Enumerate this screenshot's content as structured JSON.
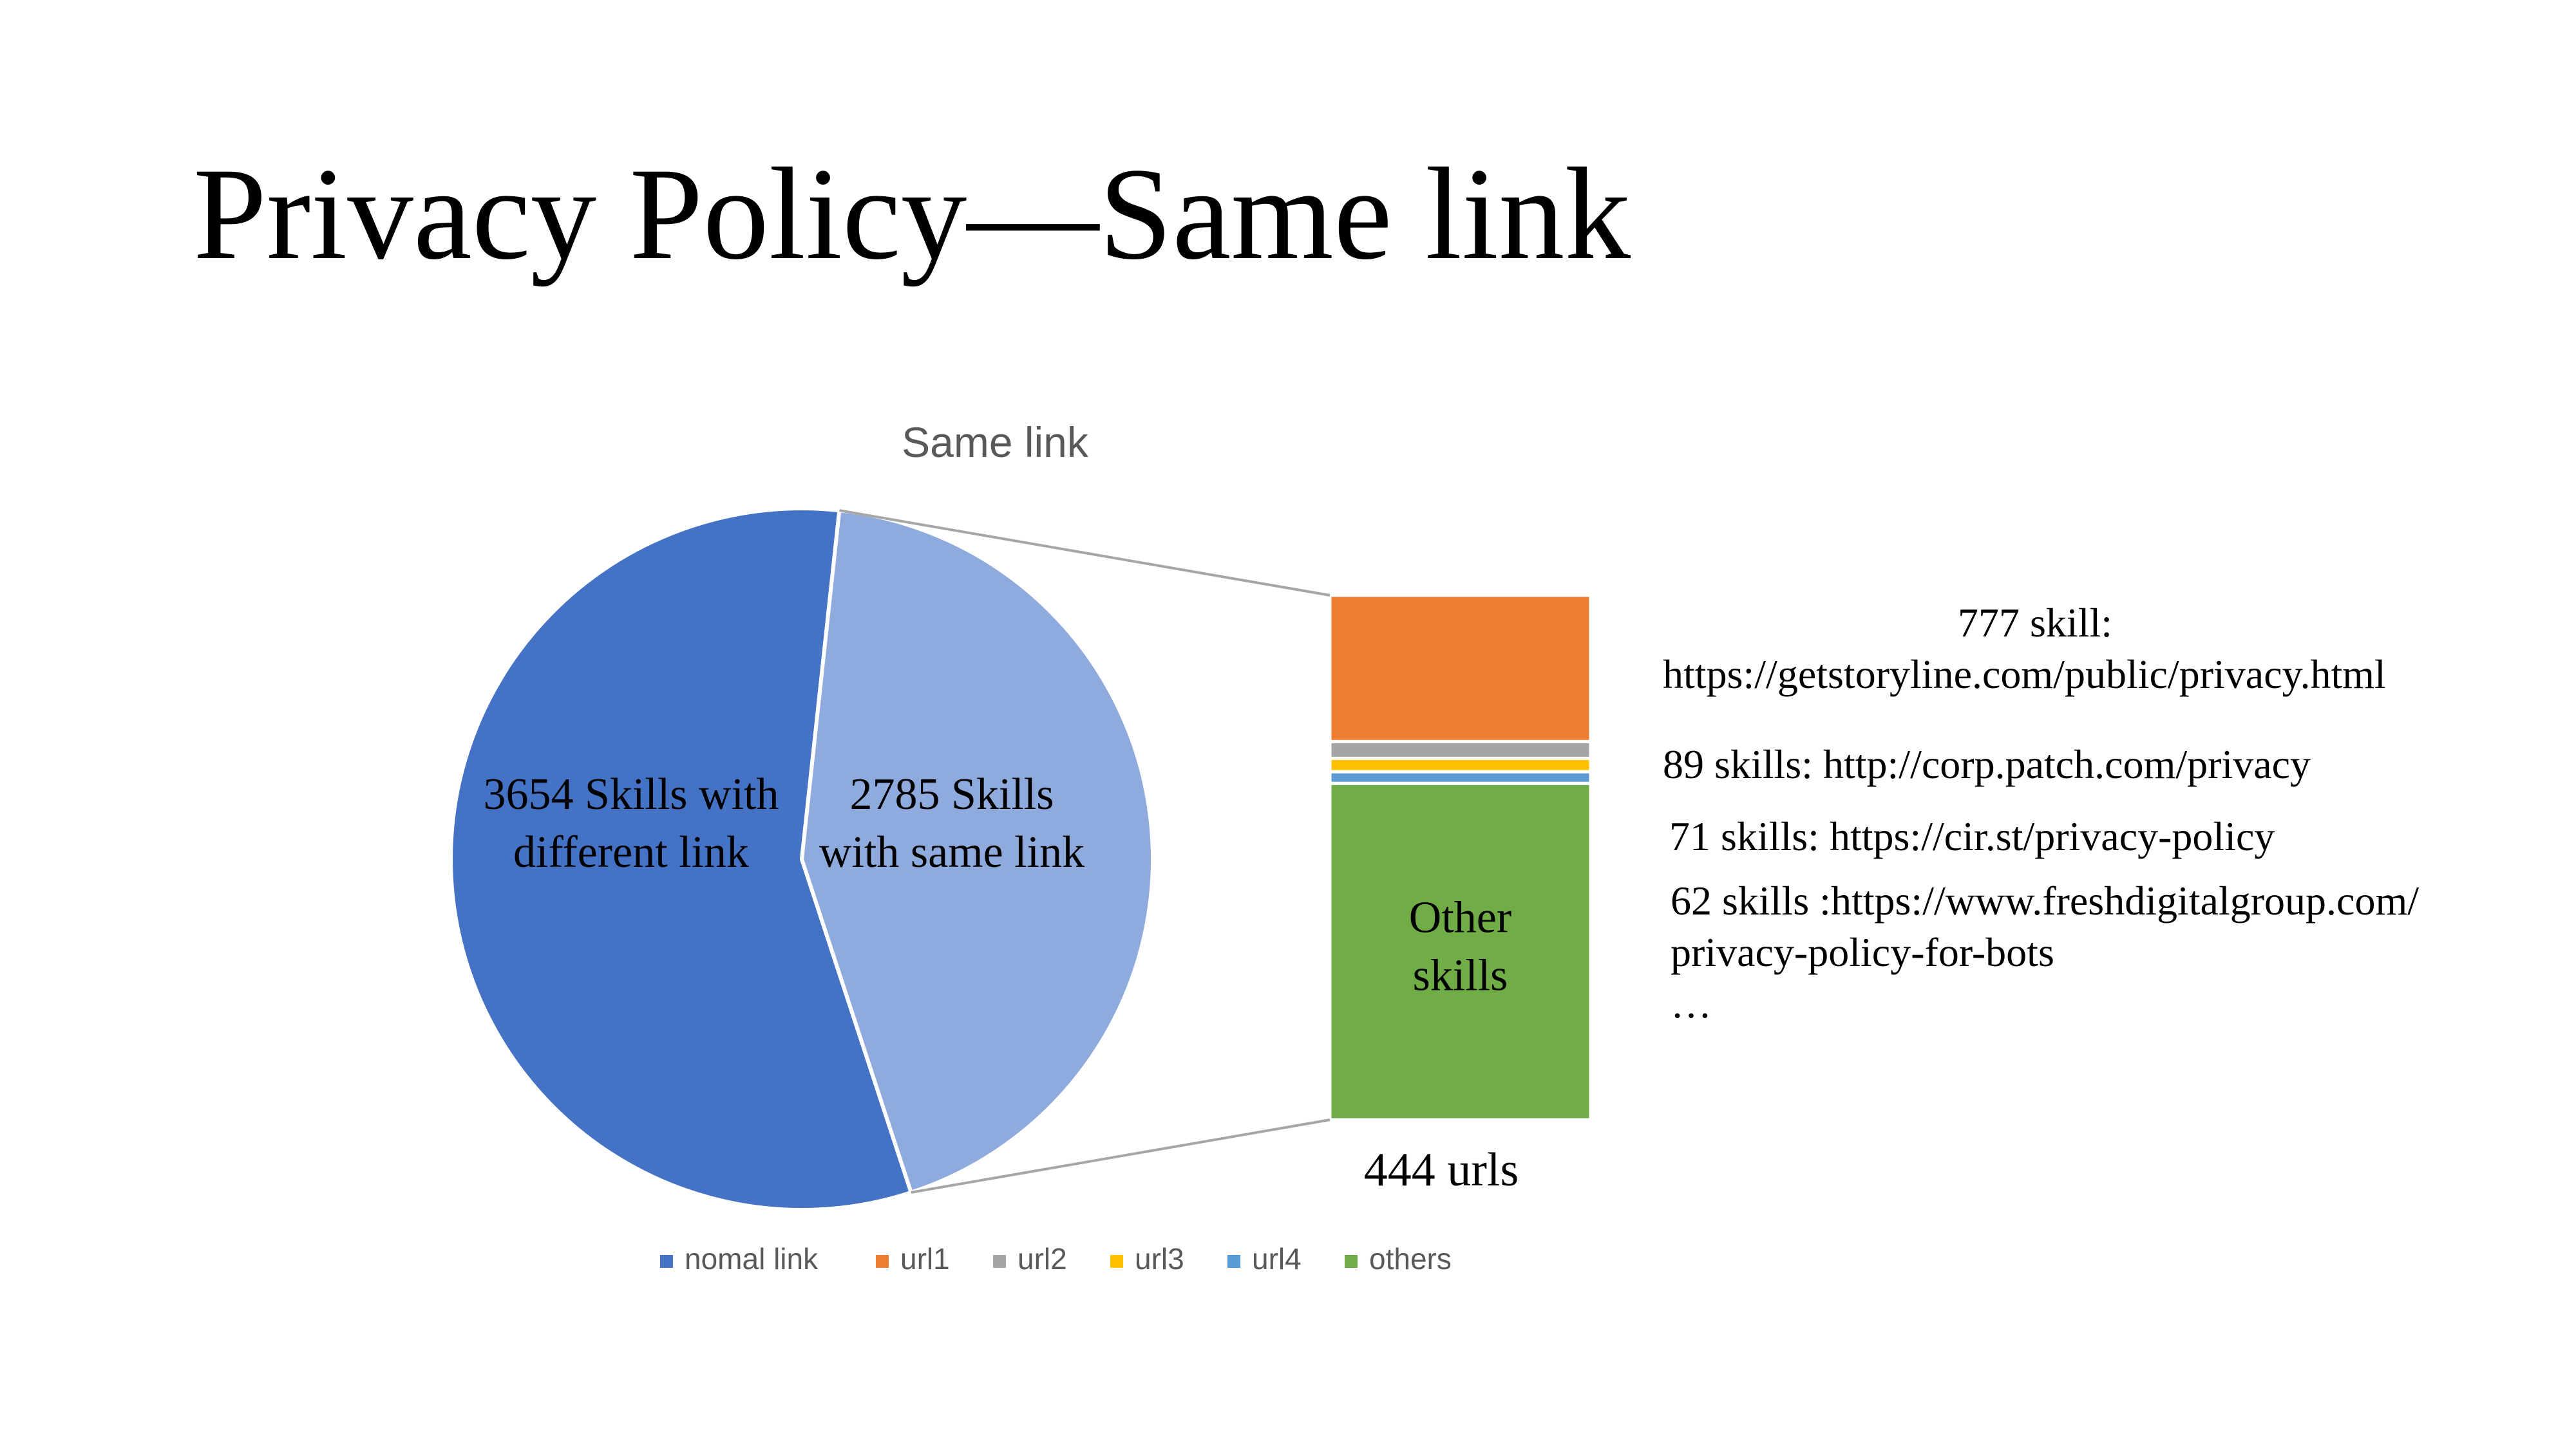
{
  "slide": {
    "title": "Privacy Policy—Same link"
  },
  "chart_data": {
    "type": "bar-of-pie",
    "title": "Same link",
    "pie": [
      {
        "name": "nomal link",
        "value": 3654,
        "label_lines": [
          "3654 Skills with",
          "different link"
        ],
        "color": "#4472C4"
      },
      {
        "name": "Skills with same link",
        "value": 2785,
        "label_lines": [
          "2785 Skills",
          "with same link"
        ],
        "color": "#8FAADC"
      }
    ],
    "bar": {
      "segments": [
        {
          "name": "url1",
          "value": 777,
          "color": "#ED7D31"
        },
        {
          "name": "url2",
          "value": 89,
          "color": "#A5A5A5"
        },
        {
          "name": "url3",
          "value": 71,
          "color": "#FFC000"
        },
        {
          "name": "url4",
          "value": 62,
          "color": "#5B9BD5"
        },
        {
          "name": "others",
          "value": 1786,
          "color": "#70AD47"
        }
      ],
      "others_label_lines": [
        "Other",
        "skills"
      ],
      "bottom_label": "444 urls"
    },
    "legend": {
      "position": "bottom",
      "entries": [
        {
          "name": "nomal link",
          "color": "#4472C4"
        },
        {
          "name": "url1",
          "color": "#ED7D31"
        },
        {
          "name": "url2",
          "color": "#A5A5A5"
        },
        {
          "name": "url3",
          "color": "#FFC000"
        },
        {
          "name": "url4",
          "color": "#5B9BD5"
        },
        {
          "name": "others",
          "color": "#70AD47"
        }
      ]
    }
  },
  "notes": {
    "note1_line1": "777 skill:",
    "note1_line2": "https://getstoryline.com/public/privacy.html",
    "note2": "89 skills: http://corp.patch.com/privacy",
    "note3": "71 skills: https://cir.st/privacy-policy",
    "note4_line1": "62 skills :https://www.freshdigitalgroup.com/",
    "note4_line2": "privacy-policy-for-bots",
    "ellipsis": "…"
  }
}
